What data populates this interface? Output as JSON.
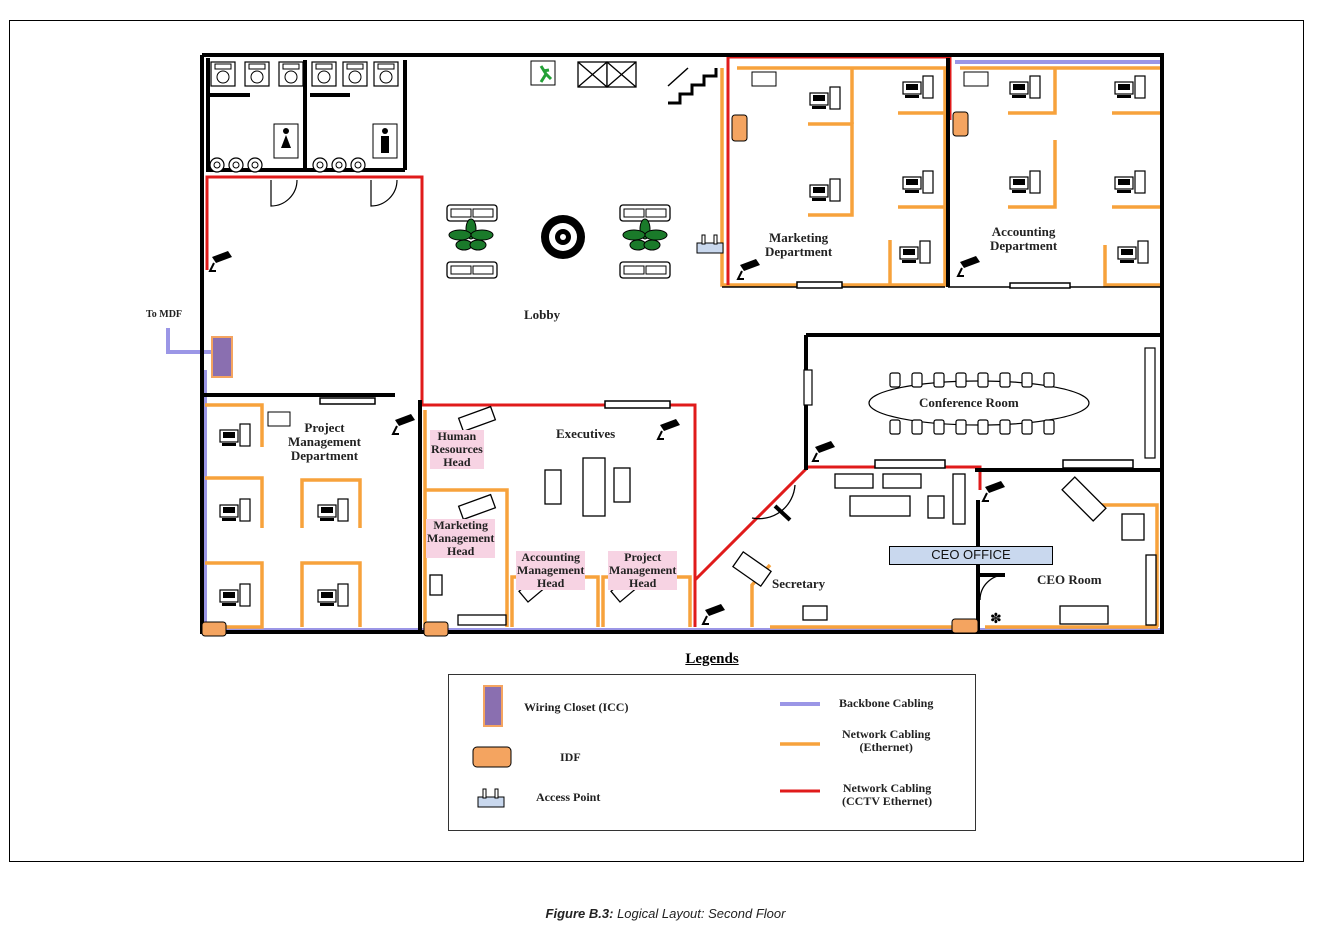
{
  "rooms": {
    "lobby": "Lobby",
    "marketing": "Marketing\nDepartment",
    "accounting": "Accounting\nDepartment",
    "conference": "Conference Room",
    "executives": "Executives",
    "project_mgmt": "Project\nManagement\nDepartment",
    "secretary": "Secretary",
    "ceo_office": "CEO OFFICE",
    "ceo_room": "CEO Room",
    "hr_head": "Human\nResources\nHead",
    "marketing_head": "Marketing\nManagement\nHead",
    "accounting_head": "Accounting\nManagement\nHead",
    "project_head": "Project\nManagement\nHead"
  },
  "mdf_label": "To MDF",
  "legend": {
    "title": "Legends",
    "wiring_closet": "Wiring Closet (ICC)",
    "idf": "IDF",
    "access_point": "Access Point",
    "backbone": "Backbone Cabling",
    "ethernet": "Network Cabling\n(Ethernet)",
    "cctv": "Network Cabling\n(CCTV Ethernet)"
  },
  "caption": {
    "label": "Figure B.3:",
    "text": "Logical Layout: Second Floor"
  },
  "colors": {
    "backbone": "#9b96e6",
    "ethernet": "#f7a23c",
    "cctv": "#e01b1b",
    "wiring_closet": "#8a6fb0",
    "idf": "#f4a460",
    "access_point": "#c9d8ee",
    "pink_label": "#f7d3e3"
  },
  "icons": [
    "toilet-icon",
    "female-restroom-icon",
    "male-restroom-icon",
    "exit-sign-icon",
    "stairs-icon",
    "plant-icon",
    "fountain-icon",
    "sofa-icon",
    "desk-computer-icon",
    "cctv-camera-icon",
    "access-point-icon",
    "conference-table-icon",
    "door-icon"
  ]
}
